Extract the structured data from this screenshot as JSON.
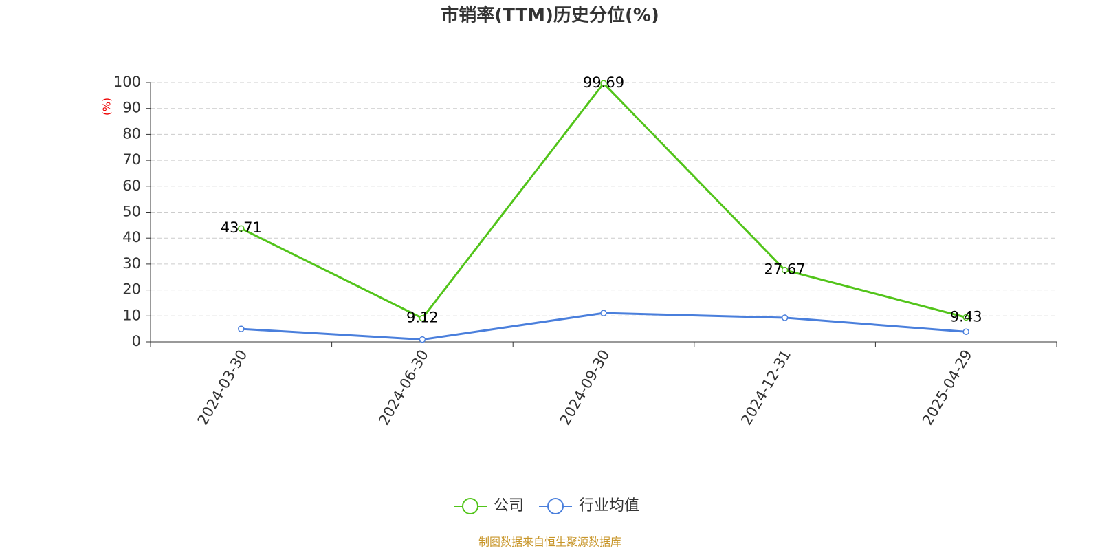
{
  "chart_data": {
    "type": "line",
    "title": "市销率(TTM)历史分位(%)",
    "y_label": "(%)",
    "categories": [
      "2024-03-30",
      "2024-06-30",
      "2024-09-30",
      "2024-12-31",
      "2025-04-29"
    ],
    "series": [
      {
        "name": "公司",
        "color": "#52c41a",
        "values": [
          43.71,
          9.12,
          99.69,
          27.67,
          9.43
        ],
        "show_labels": true
      },
      {
        "name": "行业均值",
        "color": "#4a7fdc",
        "values": [
          5.0,
          0.9,
          11.1,
          9.3,
          3.9
        ],
        "show_labels": false
      }
    ],
    "ylim": [
      0,
      100
    ],
    "yticks": [
      0,
      10,
      20,
      30,
      40,
      50,
      60,
      70,
      80,
      90,
      100
    ],
    "grid": true,
    "legend": "bottom",
    "source": "制图数据来自恒生聚源数据库"
  }
}
